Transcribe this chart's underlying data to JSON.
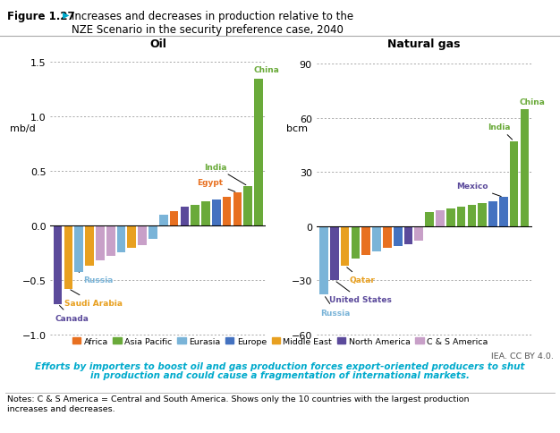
{
  "title_bold": "Figure 1.27",
  "title_arrow": "▶",
  "title_main": "  Increases and decreases in production relative to the\n    NZE Scenario in the security preference case, 2040",
  "oil_title": "Oil",
  "gas_title": "Natural gas",
  "oil_ylabel": "mb/d",
  "gas_ylabel": "bcm",
  "oil_ylim": [
    -1.05,
    1.6
  ],
  "gas_ylim": [
    -63,
    97
  ],
  "oil_yticks": [
    -1.0,
    -0.5,
    0,
    0.5,
    1.0,
    1.5
  ],
  "gas_yticks": [
    -60,
    -30,
    0,
    30,
    60,
    90
  ],
  "oil_bars": [
    {
      "value": -0.72,
      "color": "#5b4a9b"
    },
    {
      "value": -0.58,
      "color": "#e8a020"
    },
    {
      "value": -0.43,
      "color": "#7ab4d8"
    },
    {
      "value": -0.37,
      "color": "#e8a020"
    },
    {
      "value": -0.32,
      "color": "#c8a0c8"
    },
    {
      "value": -0.28,
      "color": "#c8a0c8"
    },
    {
      "value": -0.25,
      "color": "#7ab4d8"
    },
    {
      "value": -0.21,
      "color": "#e8a020"
    },
    {
      "value": -0.18,
      "color": "#c8a0c8"
    },
    {
      "value": -0.12,
      "color": "#7ab4d8"
    },
    {
      "value": 0.1,
      "color": "#7ab4d8"
    },
    {
      "value": 0.13,
      "color": "#e87020"
    },
    {
      "value": 0.17,
      "color": "#5b4a9b"
    },
    {
      "value": 0.19,
      "color": "#6aaa3a"
    },
    {
      "value": 0.22,
      "color": "#6aaa3a"
    },
    {
      "value": 0.24,
      "color": "#4472c0"
    },
    {
      "value": 0.26,
      "color": "#e87020"
    },
    {
      "value": 0.3,
      "color": "#e87020"
    },
    {
      "value": 0.36,
      "color": "#6aaa3a"
    },
    {
      "value": 1.35,
      "color": "#6aaa3a"
    }
  ],
  "gas_bars": [
    {
      "value": -38,
      "color": "#7ab4d8"
    },
    {
      "value": -30,
      "color": "#5b4a9b"
    },
    {
      "value": -22,
      "color": "#e8a020"
    },
    {
      "value": -18,
      "color": "#6aaa3a"
    },
    {
      "value": -16,
      "color": "#e87020"
    },
    {
      "value": -14,
      "color": "#7ab4d8"
    },
    {
      "value": -12,
      "color": "#e87020"
    },
    {
      "value": -11,
      "color": "#4472c0"
    },
    {
      "value": -10,
      "color": "#5b4a9b"
    },
    {
      "value": -8,
      "color": "#c8a0c8"
    },
    {
      "value": 8,
      "color": "#6aaa3a"
    },
    {
      "value": 9,
      "color": "#c8a0c8"
    },
    {
      "value": 10,
      "color": "#6aaa3a"
    },
    {
      "value": 11,
      "color": "#6aaa3a"
    },
    {
      "value": 12,
      "color": "#6aaa3a"
    },
    {
      "value": 13,
      "color": "#6aaa3a"
    },
    {
      "value": 14,
      "color": "#4472c0"
    },
    {
      "value": 16,
      "color": "#4472c0"
    },
    {
      "value": 47,
      "color": "#6aaa3a"
    },
    {
      "value": 65,
      "color": "#6aaa3a"
    }
  ],
  "legend_items": [
    {
      "label": "Africa",
      "color": "#e87020"
    },
    {
      "label": "Asia Pacific",
      "color": "#6aaa3a"
    },
    {
      "label": "Eurasia",
      "color": "#7ab4d8"
    },
    {
      "label": "Europe",
      "color": "#4472c0"
    },
    {
      "label": "Middle East",
      "color": "#e8a020"
    },
    {
      "label": "North America",
      "color": "#5b4a9b"
    },
    {
      "label": "C & S America",
      "color": "#c8a0c8"
    }
  ],
  "italic_text1": "Efforts by importers to boost oil and gas production forces export-oriented producers to shut",
  "italic_text2": "in production and could cause a fragmentation of international markets.",
  "notes_text": "Notes: C & S America = Central and South America. Shows only the 10 countries with the largest production\nincreases and decreases.",
  "iea_text": "IEA. CC BY 4.0.",
  "bg_color": "#ffffff"
}
